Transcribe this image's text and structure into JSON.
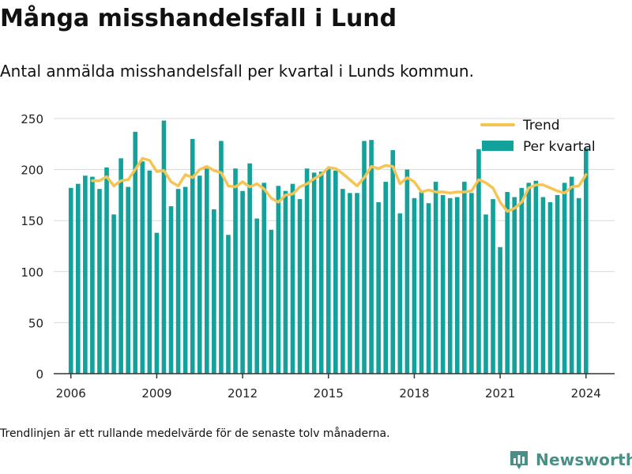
{
  "title": "Många misshandelsfall i Lund",
  "subtitle": "Antal anmälda misshandelsfall per kvartal i Lunds kommun.",
  "footnote": "Trendlinjen är ett rullande medelvärde för de senaste tolv månaderna.",
  "brand": {
    "name": "Newsworthy",
    "icon": "bar-chart-logo-icon",
    "color": "#4a8f85"
  },
  "colors": {
    "bar": "#12a29b",
    "trend": "#f5c453",
    "grid": "#d9d9d9",
    "axis": "#333333"
  },
  "chart_data": {
    "type": "bar",
    "legend_position": "top-right",
    "grid": true,
    "ylim": [
      0,
      250
    ],
    "yticks": [
      0,
      50,
      100,
      150,
      200,
      250
    ],
    "xlim": [
      2005.4,
      2025.0
    ],
    "xticks": [
      2006,
      2009,
      2012,
      2015,
      2018,
      2021,
      2024
    ],
    "x_start": 2006.0,
    "x_step": 0.25,
    "series": [
      {
        "name": "Per kvartal",
        "type": "bar",
        "values": [
          182,
          186,
          194,
          193,
          181,
          202,
          156,
          211,
          183,
          237,
          208,
          199,
          138,
          248,
          164,
          181,
          183,
          230,
          194,
          201,
          161,
          228,
          136,
          201,
          179,
          206,
          152,
          187,
          141,
          184,
          179,
          186,
          171,
          201,
          197,
          198,
          201,
          199,
          181,
          177,
          177,
          228,
          229,
          168,
          188,
          219,
          157,
          200,
          172,
          178,
          167,
          188,
          175,
          172,
          173,
          188,
          177,
          220,
          156,
          171,
          124,
          178,
          173,
          182,
          187,
          189,
          173,
          168,
          175,
          187,
          193,
          172,
          221
        ]
      },
      {
        "name": "Trend",
        "type": "line",
        "values": [
          null,
          null,
          null,
          189,
          189,
          193,
          184,
          189,
          190,
          200,
          211,
          209,
          198,
          199,
          188,
          184,
          195,
          192,
          200,
          203,
          199,
          197,
          184,
          183,
          188,
          183,
          186,
          181,
          172,
          168,
          175,
          176,
          183,
          186,
          191,
          195,
          202,
          201,
          196,
          190,
          184,
          192,
          203,
          201,
          204,
          203,
          186,
          192,
          188,
          178,
          180,
          178,
          178,
          177,
          178,
          178,
          179,
          190,
          187,
          182,
          168,
          159,
          162,
          168,
          182,
          185,
          185,
          182,
          179,
          177,
          183,
          184,
          195
        ]
      }
    ]
  }
}
